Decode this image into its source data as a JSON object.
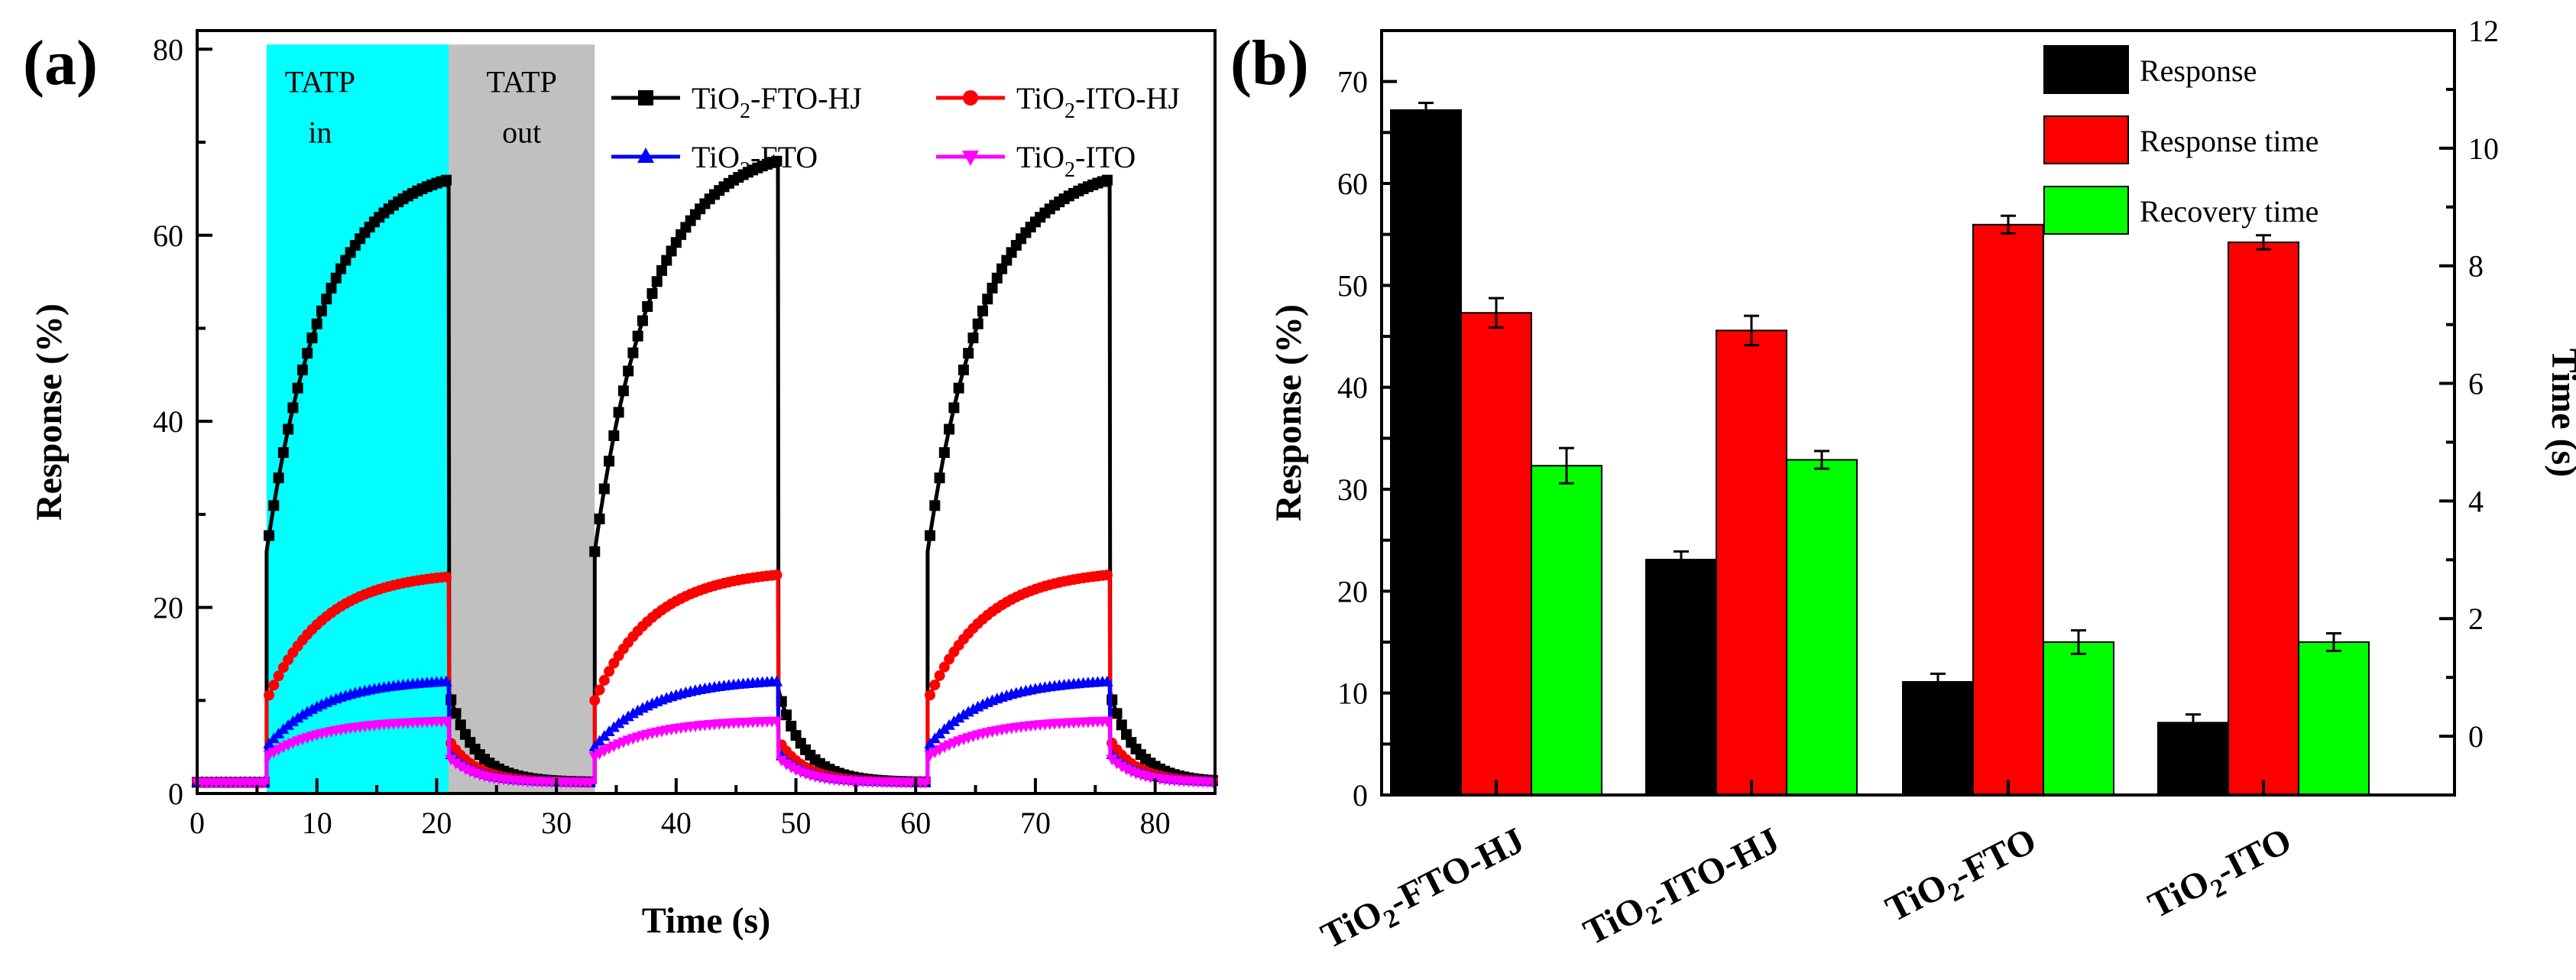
{
  "chart_data": [
    {
      "panel": "(a)",
      "type": "line",
      "xlabel": "Time (s)",
      "ylabel": "Response (%)",
      "xlim": [
        0,
        85
      ],
      "ylim": [
        0,
        82
      ],
      "xticks": [
        0,
        10,
        20,
        30,
        40,
        50,
        60,
        70,
        80
      ],
      "yticks": [
        0,
        20,
        40,
        60,
        80
      ],
      "shaded_regions": [
        {
          "label": "TATP",
          "label2": "in",
          "x0": 5.8,
          "x1": 21,
          "color": "#00ffff"
        },
        {
          "label": "TATP",
          "label2": "out",
          "x0": 21,
          "x1": 33.2,
          "color": "#c0c0c0"
        }
      ],
      "cycles": [
        {
          "on": 5.8,
          "off": 21
        },
        {
          "on": 33.2,
          "off": 48.5
        },
        {
          "on": 61,
          "off": 76.2
        }
      ],
      "baseline": 1.2,
      "series": [
        {
          "name": "TiO",
          "sub": "2",
          "suffix": "-FTO-HJ",
          "color": "#000000",
          "marker": "square",
          "peaks": [
            66,
            68,
            66
          ],
          "start": 26
        },
        {
          "name": "TiO",
          "sub": "2",
          "suffix": "-ITO-HJ",
          "color": "#ff0000",
          "marker": "circle",
          "peaks": [
            23.3,
            23.5,
            23.5
          ],
          "start": 10
        },
        {
          "name": "TiO",
          "sub": "2",
          "suffix": "-FTO",
          "color": "#0000ff",
          "marker": "triangle-up",
          "peaks": [
            12,
            12,
            12
          ],
          "start": 5
        },
        {
          "name": "TiO",
          "sub": "2",
          "suffix": "-ITO",
          "color": "#ff00ff",
          "marker": "triangle-down",
          "peaks": [
            7.8,
            7.8,
            7.8
          ],
          "start": 4
        }
      ]
    },
    {
      "panel": "(b)",
      "type": "bar",
      "ylabel": "Response (%)",
      "y2label": "Time (s)",
      "ylim": [
        0,
        75
      ],
      "y2lim": [
        -1,
        12
      ],
      "yticks": [
        0,
        10,
        20,
        30,
        40,
        50,
        60,
        70
      ],
      "y2ticks": [
        0,
        2,
        4,
        6,
        8,
        10,
        12
      ],
      "categories": [
        {
          "main": "TiO",
          "sub": "2",
          "rest": "-FTO-HJ"
        },
        {
          "main": "TiO",
          "sub": "2",
          "rest": "-ITO-HJ"
        },
        {
          "main": "TiO",
          "sub": "2",
          "rest": "-FTO"
        },
        {
          "main": "TiO",
          "sub": "2",
          "rest": "-ITO"
        }
      ],
      "series": [
        {
          "name": "Response",
          "color": "#000000",
          "axis": "left",
          "values": [
            67.2,
            23.1,
            11.1,
            7.1
          ],
          "errors": [
            0.7,
            0.8,
            0.8,
            0.8
          ]
        },
        {
          "name": "Response time",
          "color": "#ff0000",
          "axis": "right",
          "values": [
            7.2,
            6.9,
            8.7,
            8.4
          ],
          "errors": [
            0.25,
            0.25,
            0.15,
            0.12
          ]
        },
        {
          "name": "Recovery time",
          "color": "#00ff00",
          "axis": "right",
          "values": [
            4.6,
            4.7,
            1.6,
            1.6
          ],
          "errors": [
            0.3,
            0.15,
            0.2,
            0.15
          ]
        }
      ]
    }
  ]
}
